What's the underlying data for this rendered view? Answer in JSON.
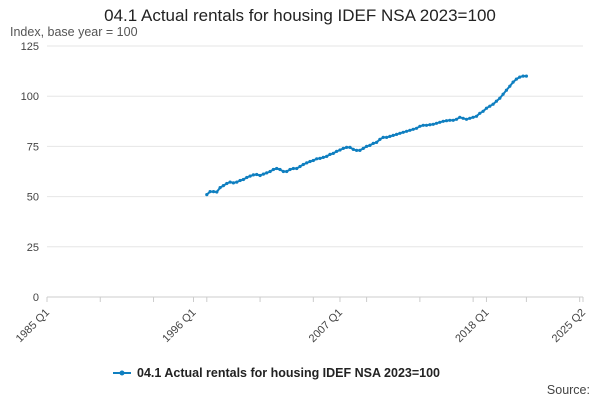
{
  "chart_data": {
    "type": "line",
    "title": "04.1 Actual rentals for housing IDEF NSA 2023=100",
    "subtitle": "Index, base year = 100",
    "source_label": "Source:",
    "xlabel": "",
    "ylabel": "",
    "x_range": [
      "1985 Q1",
      "2025 Q2"
    ],
    "ylim": [
      0,
      125
    ],
    "y_ticks": [
      0,
      25,
      50,
      75,
      100,
      125
    ],
    "x_ticks": [
      "1985 Q1",
      "1996 Q1",
      "2007 Q1",
      "2018 Q1",
      "2025 Q2"
    ],
    "grid": "horizontal",
    "legend_position": "bottom",
    "series": [
      {
        "name": "04.1 Actual rentals for housing IDEF NSA 2023=100",
        "color": "#0f7fc0",
        "points": [
          [
            "1997 Q1",
            51.0
          ],
          [
            "1997 Q2",
            52.5
          ],
          [
            "1997 Q3",
            52.5
          ],
          [
            "1997 Q4",
            52.3
          ],
          [
            "1998 Q1",
            54.5
          ],
          [
            "1998 Q2",
            55.5
          ],
          [
            "1998 Q3",
            56.5
          ],
          [
            "1998 Q4",
            57.2
          ],
          [
            "1999 Q1",
            56.8
          ],
          [
            "1999 Q2",
            57.2
          ],
          [
            "1999 Q3",
            58.0
          ],
          [
            "1999 Q4",
            58.5
          ],
          [
            "2000 Q1",
            59.5
          ],
          [
            "2000 Q2",
            60.2
          ],
          [
            "2000 Q3",
            60.8
          ],
          [
            "2000 Q4",
            61.0
          ],
          [
            "2001 Q1",
            60.5
          ],
          [
            "2001 Q2",
            61.2
          ],
          [
            "2001 Q3",
            61.8
          ],
          [
            "2001 Q4",
            62.5
          ],
          [
            "2002 Q1",
            63.5
          ],
          [
            "2002 Q2",
            64.0
          ],
          [
            "2002 Q3",
            63.5
          ],
          [
            "2002 Q4",
            62.5
          ],
          [
            "2003 Q1",
            62.5
          ],
          [
            "2003 Q2",
            63.5
          ],
          [
            "2003 Q3",
            64.0
          ],
          [
            "2003 Q4",
            64.0
          ],
          [
            "2004 Q1",
            65.0
          ],
          [
            "2004 Q2",
            66.0
          ],
          [
            "2004 Q3",
            66.8
          ],
          [
            "2004 Q4",
            67.5
          ],
          [
            "2005 Q1",
            68.0
          ],
          [
            "2005 Q2",
            68.8
          ],
          [
            "2005 Q3",
            69.0
          ],
          [
            "2005 Q4",
            69.5
          ],
          [
            "2006 Q1",
            70.0
          ],
          [
            "2006 Q2",
            71.0
          ],
          [
            "2006 Q3",
            71.5
          ],
          [
            "2006 Q4",
            72.5
          ],
          [
            "2007 Q1",
            73.2
          ],
          [
            "2007 Q2",
            74.0
          ],
          [
            "2007 Q3",
            74.5
          ],
          [
            "2007 Q4",
            74.5
          ],
          [
            "2008 Q1",
            73.5
          ],
          [
            "2008 Q2",
            73.0
          ],
          [
            "2008 Q3",
            73.0
          ],
          [
            "2008 Q4",
            74.0
          ],
          [
            "2009 Q1",
            75.0
          ],
          [
            "2009 Q2",
            75.5
          ],
          [
            "2009 Q3",
            76.5
          ],
          [
            "2009 Q4",
            77.0
          ],
          [
            "2010 Q1",
            78.5
          ],
          [
            "2010 Q2",
            79.5
          ],
          [
            "2010 Q3",
            79.5
          ],
          [
            "2010 Q4",
            80.0
          ],
          [
            "2011 Q1",
            80.5
          ],
          [
            "2011 Q2",
            81.0
          ],
          [
            "2011 Q3",
            81.5
          ],
          [
            "2011 Q4",
            82.0
          ],
          [
            "2012 Q1",
            82.5
          ],
          [
            "2012 Q2",
            83.0
          ],
          [
            "2012 Q3",
            83.5
          ],
          [
            "2012 Q4",
            84.0
          ],
          [
            "2013 Q1",
            85.0
          ],
          [
            "2013 Q2",
            85.5
          ],
          [
            "2013 Q3",
            85.5
          ],
          [
            "2013 Q4",
            85.8
          ],
          [
            "2014 Q1",
            86.0
          ],
          [
            "2014 Q2",
            86.5
          ],
          [
            "2014 Q3",
            87.0
          ],
          [
            "2014 Q4",
            87.5
          ],
          [
            "2015 Q1",
            87.8
          ],
          [
            "2015 Q2",
            88.0
          ],
          [
            "2015 Q3",
            88.0
          ],
          [
            "2015 Q4",
            88.5
          ],
          [
            "2016 Q1",
            89.5
          ],
          [
            "2016 Q2",
            89.0
          ],
          [
            "2016 Q3",
            88.5
          ],
          [
            "2016 Q4",
            89.0
          ],
          [
            "2017 Q1",
            89.5
          ],
          [
            "2017 Q2",
            90.0
          ],
          [
            "2017 Q3",
            91.5
          ],
          [
            "2017 Q4",
            92.5
          ],
          [
            "2018 Q1",
            94.0
          ],
          [
            "2018 Q2",
            95.0
          ],
          [
            "2018 Q3",
            96.0
          ],
          [
            "2018 Q4",
            97.5
          ],
          [
            "2019 Q1",
            99.0
          ],
          [
            "2019 Q2",
            101.0
          ],
          [
            "2019 Q3",
            103.0
          ],
          [
            "2019 Q4",
            105.0
          ],
          [
            "2020 Q1",
            107.0
          ],
          [
            "2020 Q2",
            108.5
          ],
          [
            "2020 Q3",
            109.5
          ],
          [
            "2020 Q4",
            110.0
          ],
          [
            "2021 Q1",
            110.0
          ]
        ]
      }
    ]
  }
}
